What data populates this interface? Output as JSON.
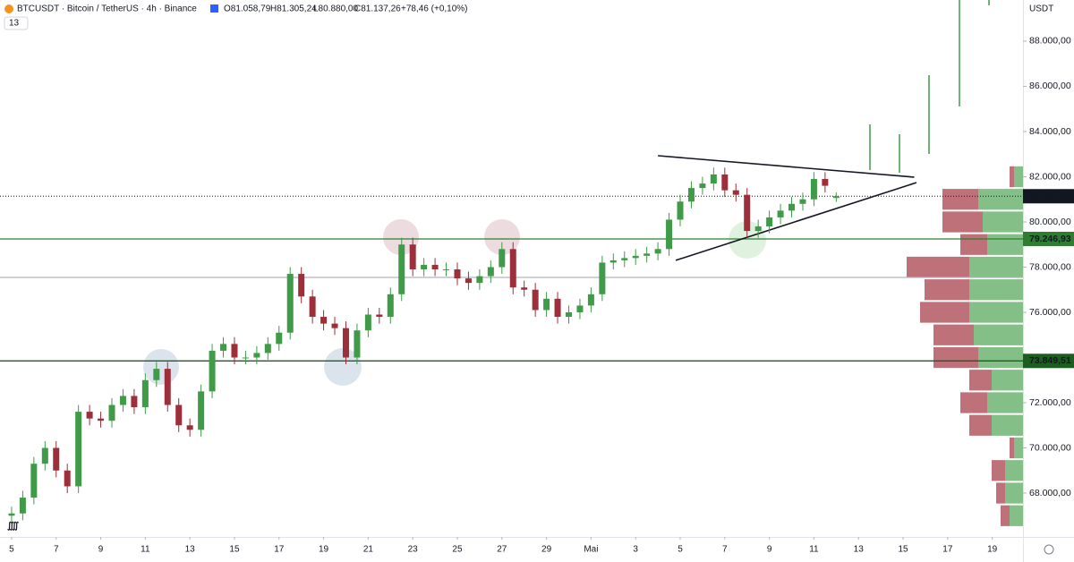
{
  "chart_data": {
    "type": "candlestick",
    "title": "BTCUSDT · Bitcoin / TetherUS · 4h · Binance",
    "ohlc_labels": [
      "O81.058,79",
      "H81.305,24",
      "L80.880,00",
      "C81.137,26"
    ],
    "change": "+78,46 (+0,10%)",
    "badge": "13",
    "currency": "USDT",
    "up_color": "#3f9b48",
    "down_color": "#9c2f3a",
    "x": [
      0,
      0.5,
      1,
      1.5,
      2,
      2.5,
      3,
      3.5,
      4,
      4.5,
      5,
      5.5,
      6,
      6.5,
      7,
      7.5,
      8,
      8.5,
      9,
      9.5,
      10,
      10.5,
      11,
      11.5,
      12,
      12.5,
      13,
      13.5,
      14,
      14.5,
      15,
      15.5,
      16,
      16.5,
      17,
      17.5,
      18,
      18.5,
      19,
      19.5,
      20,
      20.5,
      21,
      21.5,
      22,
      22.5,
      23,
      23.5,
      24,
      24.5,
      25,
      25.5,
      26,
      26.5,
      27,
      27.5,
      28,
      28.5,
      29,
      29.5,
      30,
      30.5,
      31,
      31.5,
      32,
      32.5,
      33,
      33.5,
      34,
      34.5,
      35,
      35.5,
      36,
      36.5,
      37
    ],
    "open": [
      67000,
      67100,
      67800,
      69300,
      70000,
      69000,
      68300,
      71600,
      71300,
      71200,
      71900,
      72300,
      71800,
      73000,
      73500,
      71900,
      71000,
      70800,
      72500,
      74300,
      74600,
      74000,
      74000,
      74200,
      74600,
      75100,
      77700,
      76700,
      75800,
      75500,
      75300,
      74000,
      75200,
      75900,
      75800,
      76800,
      79000,
      77900,
      78100,
      77900,
      77900,
      77500,
      77300,
      77600,
      78000,
      78800,
      77100,
      77000,
      76100,
      76600,
      75800,
      76000,
      76300,
      76800,
      78200,
      78300,
      78400,
      78500,
      78600,
      78800,
      80100,
      80900,
      81500,
      81700,
      82100,
      81400,
      81200,
      79600,
      79800,
      80200,
      80500,
      80800,
      81000,
      81900,
      81058.79
    ],
    "high": [
      67400,
      68100,
      69600,
      70300,
      70300,
      69300,
      71900,
      71900,
      71600,
      72200,
      72600,
      72600,
      73300,
      73800,
      73800,
      72200,
      71300,
      72800,
      74600,
      74900,
      74900,
      74300,
      74500,
      74900,
      75400,
      78000,
      78000,
      77000,
      76100,
      75800,
      75600,
      75500,
      76200,
      76200,
      77100,
      79300,
      79300,
      78400,
      78400,
      78200,
      78200,
      77800,
      77900,
      78300,
      79100,
      79100,
      77400,
      77300,
      76900,
      76900,
      76300,
      76600,
      77100,
      78500,
      78600,
      78700,
      78800,
      78900,
      79100,
      80400,
      81200,
      81800,
      82000,
      82400,
      82400,
      81700,
      81500,
      80100,
      80500,
      80800,
      81100,
      81300,
      82200,
      82200,
      81305.24
    ],
    "low": [
      66700,
      66800,
      67500,
      69000,
      68700,
      68000,
      68000,
      71000,
      70900,
      70900,
      71600,
      71500,
      71500,
      72700,
      71600,
      70700,
      70500,
      70500,
      72200,
      74000,
      73700,
      73700,
      73700,
      73900,
      74300,
      74800,
      76400,
      75500,
      75200,
      75000,
      73700,
      73700,
      74900,
      75500,
      75500,
      76500,
      77600,
      77600,
      77600,
      77600,
      77200,
      77000,
      77000,
      77300,
      77700,
      76800,
      76700,
      75800,
      75800,
      75500,
      75500,
      75700,
      76000,
      76500,
      77900,
      78000,
      78100,
      78200,
      78300,
      78500,
      79800,
      80600,
      81200,
      81400,
      81100,
      80900,
      79300,
      79300,
      79500,
      79900,
      80200,
      80500,
      80700,
      81300,
      80880
    ],
    "close": [
      67100,
      67800,
      69300,
      70000,
      69000,
      68300,
      71600,
      71300,
      71200,
      71900,
      72300,
      71800,
      73000,
      73500,
      71900,
      71000,
      70800,
      72500,
      74300,
      74600,
      74000,
      74000,
      74200,
      74600,
      75100,
      77700,
      76700,
      75800,
      75500,
      75300,
      74000,
      75200,
      75900,
      75800,
      76800,
      79000,
      77900,
      78100,
      77900,
      77900,
      77500,
      77300,
      77600,
      78000,
      78800,
      77100,
      77000,
      76100,
      76600,
      75800,
      76000,
      76300,
      76800,
      78200,
      78300,
      78400,
      78500,
      78600,
      78800,
      80100,
      80900,
      81500,
      81700,
      82100,
      81400,
      81200,
      79600,
      79800,
      80200,
      80500,
      80800,
      81000,
      81900,
      81600,
      81137.26
    ],
    "xlim": [
      -0.52,
      45.38
    ],
    "ylim": [
      66060,
      89820
    ],
    "xticks": [
      {
        "value": 0,
        "label": "5"
      },
      {
        "value": 2,
        "label": "7"
      },
      {
        "value": 4,
        "label": "9"
      },
      {
        "value": 6,
        "label": "11"
      },
      {
        "value": 8,
        "label": "13"
      },
      {
        "value": 10,
        "label": "15"
      },
      {
        "value": 12,
        "label": "17"
      },
      {
        "value": 14,
        "label": "19"
      },
      {
        "value": 16,
        "label": "21"
      },
      {
        "value": 18,
        "label": "23"
      },
      {
        "value": 20,
        "label": "25"
      },
      {
        "value": 22,
        "label": "27"
      },
      {
        "value": 24,
        "label": "29"
      },
      {
        "value": 26,
        "label": "Mai"
      },
      {
        "value": 28,
        "label": "3"
      },
      {
        "value": 30,
        "label": "5"
      },
      {
        "value": 32,
        "label": "7"
      },
      {
        "value": 34,
        "label": "9"
      },
      {
        "value": 36,
        "label": "11"
      },
      {
        "value": 38,
        "label": "13"
      },
      {
        "value": 40,
        "label": "15"
      },
      {
        "value": 42,
        "label": "17"
      },
      {
        "value": 44,
        "label": "19"
      }
    ],
    "yticks": [
      {
        "value": 68000,
        "label": "68.000,00"
      },
      {
        "value": 70000,
        "label": "70.000,00"
      },
      {
        "value": 72000,
        "label": "72.000,00"
      },
      {
        "value": 74000,
        "label": "74.000,00"
      },
      {
        "value": 76000,
        "label": "76.000,00"
      },
      {
        "value": 78000,
        "label": "78.000,00"
      },
      {
        "value": 80000,
        "label": "80.000,00"
      },
      {
        "value": 82000,
        "label": "82.000,00"
      },
      {
        "value": 84000,
        "label": "84.000,00"
      },
      {
        "value": 86000,
        "label": "86.000,00"
      },
      {
        "value": 88000,
        "label": "88.000,00"
      }
    ],
    "hlines": [
      {
        "value": 81137.26,
        "label": "81.137,26",
        "color": "#131722",
        "style": "dotted"
      },
      {
        "value": 79246.93,
        "label": "79.246,93",
        "color": "#2e7d32",
        "style": "solid"
      },
      {
        "value": 77545,
        "color": "#b2b5be",
        "style": "solid"
      },
      {
        "value": 73849.51,
        "label": "73.849,51",
        "color": "#1b5e20",
        "style": "solid"
      }
    ],
    "trend_lines": [
      {
        "x": [
          29.0,
          40.5
        ],
        "y": [
          82930,
          81980
        ]
      },
      {
        "x": [
          29.8,
          40.6
        ],
        "y": [
          78300,
          81740
        ]
      }
    ],
    "volume_profile": {
      "prices": [
        67000,
        68000,
        69000,
        70000,
        71000,
        72000,
        73000,
        74000,
        75000,
        76000,
        77000,
        78000,
        79000,
        80000,
        81000,
        82000
      ],
      "up": [
        15,
        20,
        20,
        10,
        35,
        40,
        35,
        50,
        55,
        60,
        60,
        60,
        40,
        45,
        50,
        10
      ],
      "down": [
        10,
        10,
        15,
        5,
        25,
        30,
        25,
        50,
        45,
        55,
        50,
        70,
        30,
        45,
        40,
        5
      ],
      "up_color": "#5aa95f",
      "down_color": "#a8424c"
    }
  }
}
